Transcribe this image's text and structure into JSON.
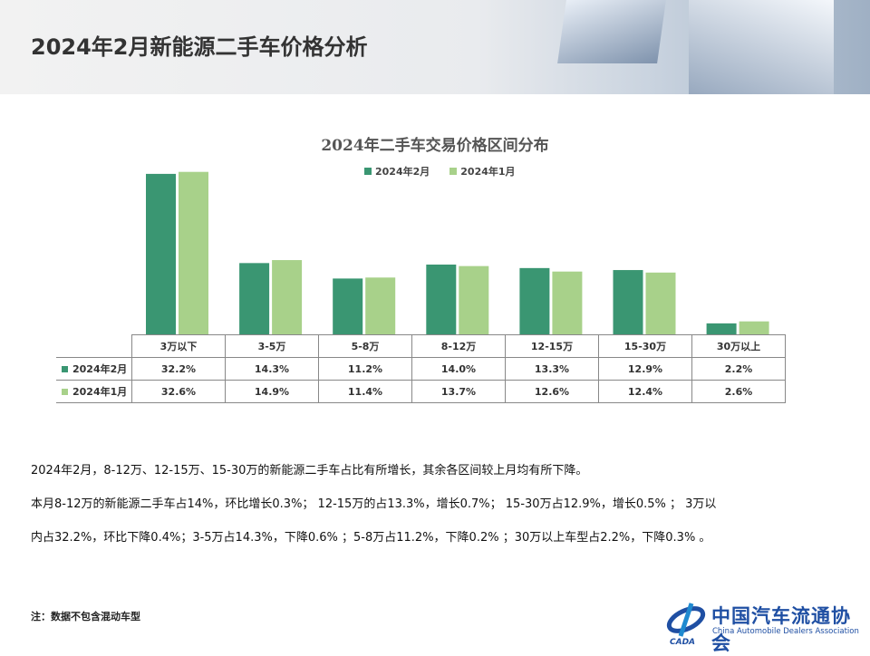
{
  "header": {
    "title": "2024年2月新能源二手车价格分析"
  },
  "chart_data": {
    "type": "bar",
    "title": "2024年二手车交易价格区间分布",
    "categories": [
      "3万以下",
      "3-5万",
      "5-8万",
      "8-12万",
      "12-15万",
      "15-30万",
      "30万以上"
    ],
    "series": [
      {
        "name": "2024年2月",
        "color": "#3a9672",
        "values": [
          32.2,
          14.3,
          11.2,
          14.0,
          13.3,
          12.9,
          2.2
        ],
        "labels": [
          "32.2%",
          "14.3%",
          "11.2%",
          "14.0%",
          "13.3%",
          "12.9%",
          "2.2%"
        ]
      },
      {
        "name": "2024年1月",
        "color": "#a8d18a",
        "values": [
          32.6,
          14.9,
          11.4,
          13.7,
          12.6,
          12.4,
          2.6
        ],
        "labels": [
          "32.6%",
          "14.9%",
          "11.4%",
          "13.7%",
          "12.6%",
          "12.4%",
          "2.6%"
        ]
      }
    ],
    "legend": "top",
    "grid": false,
    "data_table": true
  },
  "text": {
    "p1": "2024年2月，8-12万、12-15万、15-30万的新能源二手车占比有所增长，其余各区间较上月均有所下降。",
    "p2": "本月8-12万的新能源二手车占14%，环比增长0.3%；  12-15万的占13.3%，增长0.7%；   15-30万占12.9%，增长0.5% ；  3万以",
    "p3": "内占32.2%，环比下降0.4%；3-5万占14.3%，下降0.6% ；5-8万占11.2%，下降0.2% ；30万以上车型占2.2%，下降0.3% 。",
    "note": "注：数据不包含混动车型"
  },
  "logo": {
    "cn": "中国汽车流通协会",
    "en": "China Automobile Dealers Association",
    "mark": "CADA"
  }
}
